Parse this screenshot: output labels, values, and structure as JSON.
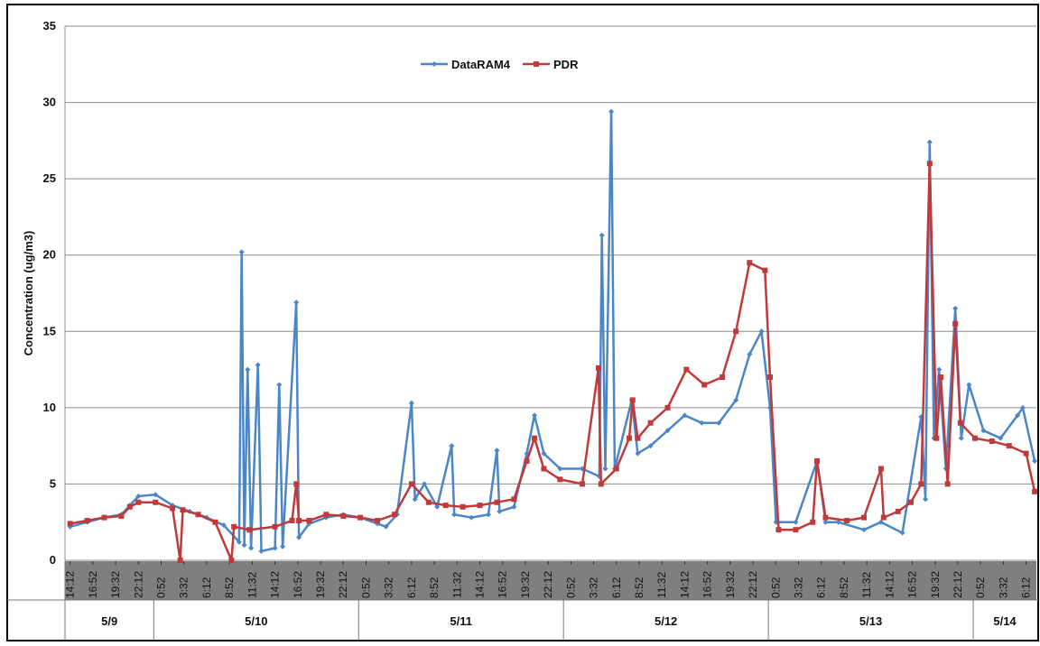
{
  "chart_data": {
    "type": "line",
    "y_label": "Concentration (ug/m3)",
    "ylim": [
      0,
      35
    ],
    "yticks": [
      0,
      5,
      10,
      15,
      20,
      25,
      30,
      35
    ],
    "grid": true,
    "xlim": [
      -0.6,
      113.2
    ],
    "xticks": [
      {
        "value": 0,
        "label": "14:12"
      },
      {
        "value": 2.667,
        "label": "16:52"
      },
      {
        "value": 5.333,
        "label": "19:32"
      },
      {
        "value": 8,
        "label": "22:12"
      },
      {
        "value": 10.667,
        "label": "0:52"
      },
      {
        "value": 13.333,
        "label": "3:32"
      },
      {
        "value": 16,
        "label": "6:12"
      },
      {
        "value": 18.667,
        "label": "8:52"
      },
      {
        "value": 21.333,
        "label": "11:32"
      },
      {
        "value": 24,
        "label": "14:12"
      },
      {
        "value": 26.667,
        "label": "16:52"
      },
      {
        "value": 29.333,
        "label": "19:32"
      },
      {
        "value": 32,
        "label": "22:12"
      },
      {
        "value": 34.667,
        "label": "0:52"
      },
      {
        "value": 37.333,
        "label": "3:32"
      },
      {
        "value": 40,
        "label": "6:12"
      },
      {
        "value": 42.667,
        "label": "8:52"
      },
      {
        "value": 45.333,
        "label": "11:32"
      },
      {
        "value": 48,
        "label": "14:12"
      },
      {
        "value": 50.667,
        "label": "16:52"
      },
      {
        "value": 53.333,
        "label": "19:32"
      },
      {
        "value": 56,
        "label": "22:12"
      },
      {
        "value": 58.667,
        "label": "0:52"
      },
      {
        "value": 61.333,
        "label": "3:32"
      },
      {
        "value": 64,
        "label": "6:12"
      },
      {
        "value": 66.667,
        "label": "8:52"
      },
      {
        "value": 69.333,
        "label": "11:32"
      },
      {
        "value": 72,
        "label": "14:12"
      },
      {
        "value": 74.667,
        "label": "16:52"
      },
      {
        "value": 77.333,
        "label": "19:32"
      },
      {
        "value": 80,
        "label": "22:12"
      },
      {
        "value": 82.667,
        "label": "0:52"
      },
      {
        "value": 85.333,
        "label": "3:32"
      },
      {
        "value": 88,
        "label": "6:12"
      },
      {
        "value": 90.667,
        "label": "8:52"
      },
      {
        "value": 93.333,
        "label": "11:32"
      },
      {
        "value": 96,
        "label": "14:12"
      },
      {
        "value": 98.667,
        "label": "16:52"
      },
      {
        "value": 101.333,
        "label": "19:32"
      },
      {
        "value": 104,
        "label": "22:12"
      },
      {
        "value": 106.667,
        "label": "0:52"
      },
      {
        "value": 109.333,
        "label": "3:32"
      },
      {
        "value": 112,
        "label": "6:12"
      }
    ],
    "day_groups": [
      {
        "label": "5/9",
        "end": 9.8
      },
      {
        "label": "5/10",
        "end": 33.8
      },
      {
        "label": "5/11",
        "end": 57.8
      },
      {
        "label": "5/12",
        "end": 81.8
      },
      {
        "label": "5/13",
        "end": 105.8
      },
      {
        "label": "5/14"
      }
    ],
    "legend": "top",
    "series": [
      {
        "name": "DataRAM4",
        "color": "#4a86c8",
        "x": [
          0,
          2,
          4,
          6,
          7,
          8,
          10,
          12,
          14,
          16,
          18,
          19.8,
          20.1,
          20.4,
          20.8,
          21.2,
          22,
          22.4,
          24,
          24.5,
          24.9,
          26.5,
          26.8,
          28,
          30,
          32,
          34,
          36,
          37,
          38.3,
          40,
          40.4,
          41.5,
          43,
          44.7,
          45,
          47,
          49,
          50,
          50.3,
          52,
          53.5,
          54.4,
          55.5,
          57.4,
          60,
          62,
          62.3,
          62.7,
          63.4,
          63.8,
          65.8,
          66.5,
          68,
          70,
          72,
          74,
          76,
          78,
          79.6,
          81,
          82,
          82.7,
          85,
          87.5,
          88.5,
          90,
          93,
          95,
          97.5,
          99.7,
          100.2,
          100.7,
          101.2,
          101.8,
          102.6,
          103.7,
          104.4,
          105.3,
          107,
          109,
          111,
          111.6,
          113
        ],
        "values": [
          2.2,
          2.5,
          2.8,
          3.0,
          3.6,
          4.2,
          4.3,
          3.6,
          3.2,
          2.8,
          2.3,
          1.2,
          20.2,
          1.0,
          12.5,
          0.8,
          12.8,
          0.6,
          0.8,
          11.5,
          0.9,
          16.9,
          1.5,
          2.4,
          2.8,
          3.0,
          2.8,
          2.4,
          2.2,
          3.0,
          10.3,
          4.0,
          5.0,
          3.5,
          7.5,
          3.0,
          2.8,
          3.0,
          7.2,
          3.2,
          3.5,
          7.0,
          9.5,
          7.0,
          6.0,
          6.0,
          5.5,
          21.3,
          6.0,
          29.4,
          6.0,
          10.5,
          7.0,
          7.5,
          8.5,
          9.5,
          9.0,
          9.0,
          10.5,
          13.5,
          15.0,
          10.0,
          2.5,
          2.5,
          6.5,
          2.5,
          2.5,
          2.0,
          2.5,
          1.8,
          9.4,
          4.0,
          27.4,
          8.0,
          12.5,
          6.0,
          16.5,
          8.0,
          11.5,
          8.5,
          8.0,
          9.5,
          10.0,
          6.5
        ]
      },
      {
        "name": "PDR",
        "color": "#c0393b",
        "x": [
          0,
          2,
          4,
          6,
          7,
          8,
          10,
          12,
          12.9,
          13.2,
          15,
          17,
          18.9,
          19.2,
          21,
          24,
          26,
          26.5,
          26.8,
          28,
          30,
          32,
          34,
          36,
          38,
          40,
          42,
          44,
          46,
          48,
          50,
          52,
          53.5,
          54.4,
          55.5,
          57.4,
          60,
          61.9,
          62.2,
          64,
          65.5,
          65.9,
          66.5,
          68,
          70,
          72.2,
          74.3,
          76.4,
          78,
          79.6,
          81.4,
          82,
          83,
          85,
          87,
          87.5,
          88.5,
          91,
          93,
          95,
          95.3,
          97,
          98.5,
          99.7,
          100.7,
          101.5,
          102,
          102.8,
          103.7,
          104.3,
          106,
          108,
          110,
          112,
          113
        ],
        "values": [
          2.4,
          2.6,
          2.8,
          2.9,
          3.5,
          3.8,
          3.8,
          3.4,
          0.0,
          3.3,
          3.0,
          2.5,
          0.0,
          2.2,
          2.0,
          2.2,
          2.6,
          5.0,
          2.6,
          2.6,
          3.0,
          2.9,
          2.8,
          2.6,
          3.0,
          5.0,
          3.8,
          3.6,
          3.5,
          3.6,
          3.8,
          4.0,
          6.5,
          8.0,
          6.0,
          5.3,
          5.0,
          12.6,
          5.0,
          6.0,
          8.0,
          10.5,
          8.0,
          9.0,
          10.0,
          12.5,
          11.5,
          12.0,
          15.0,
          19.5,
          19.0,
          12.0,
          2.0,
          2.0,
          2.5,
          6.5,
          2.8,
          2.6,
          2.8,
          6.0,
          2.8,
          3.2,
          3.8,
          5.0,
          26.0,
          8.0,
          12.0,
          5.0,
          15.5,
          9.0,
          8.0,
          7.8,
          7.5,
          7.0,
          4.5
        ]
      }
    ]
  }
}
